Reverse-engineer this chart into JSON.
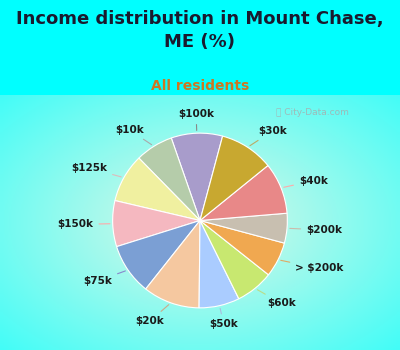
{
  "title": "Income distribution in Mount Chase,\nME (%)",
  "subtitle": "All residents",
  "labels": [
    "$100k",
    "$10k",
    "$125k",
    "$150k",
    "$75k",
    "$20k",
    "$50k",
    "$60k",
    "> $200k",
    "$200k",
    "$40k",
    "$30k"
  ],
  "values": [
    9.5,
    7.0,
    9.0,
    8.5,
    9.5,
    10.5,
    7.5,
    7.0,
    6.5,
    5.5,
    9.5,
    10.0
  ],
  "colors": [
    "#a89ccb",
    "#b5ccaa",
    "#f0f0a0",
    "#f5b8c0",
    "#7b9fd4",
    "#f5c8a0",
    "#aaccff",
    "#c8e870",
    "#f0a850",
    "#c8bfb0",
    "#e88888",
    "#c8a830"
  ],
  "background_top": "#00ffff",
  "title_color": "#1a1a2e",
  "subtitle_color": "#cc7722",
  "label_fontsize": 7.5,
  "title_fontsize": 13,
  "subtitle_fontsize": 10,
  "startangle": 75,
  "labeldistance": 1.22,
  "label_line_color": [
    "#888888",
    "#aaaaaa",
    "#ddbbbb",
    "#ffaaaa",
    "#8888cc",
    "#ccaa88",
    "#aabbdd",
    "#bbdd88",
    "#ddaa66",
    "#ccbbaa",
    "#ffaaaa",
    "#bbaa66"
  ]
}
